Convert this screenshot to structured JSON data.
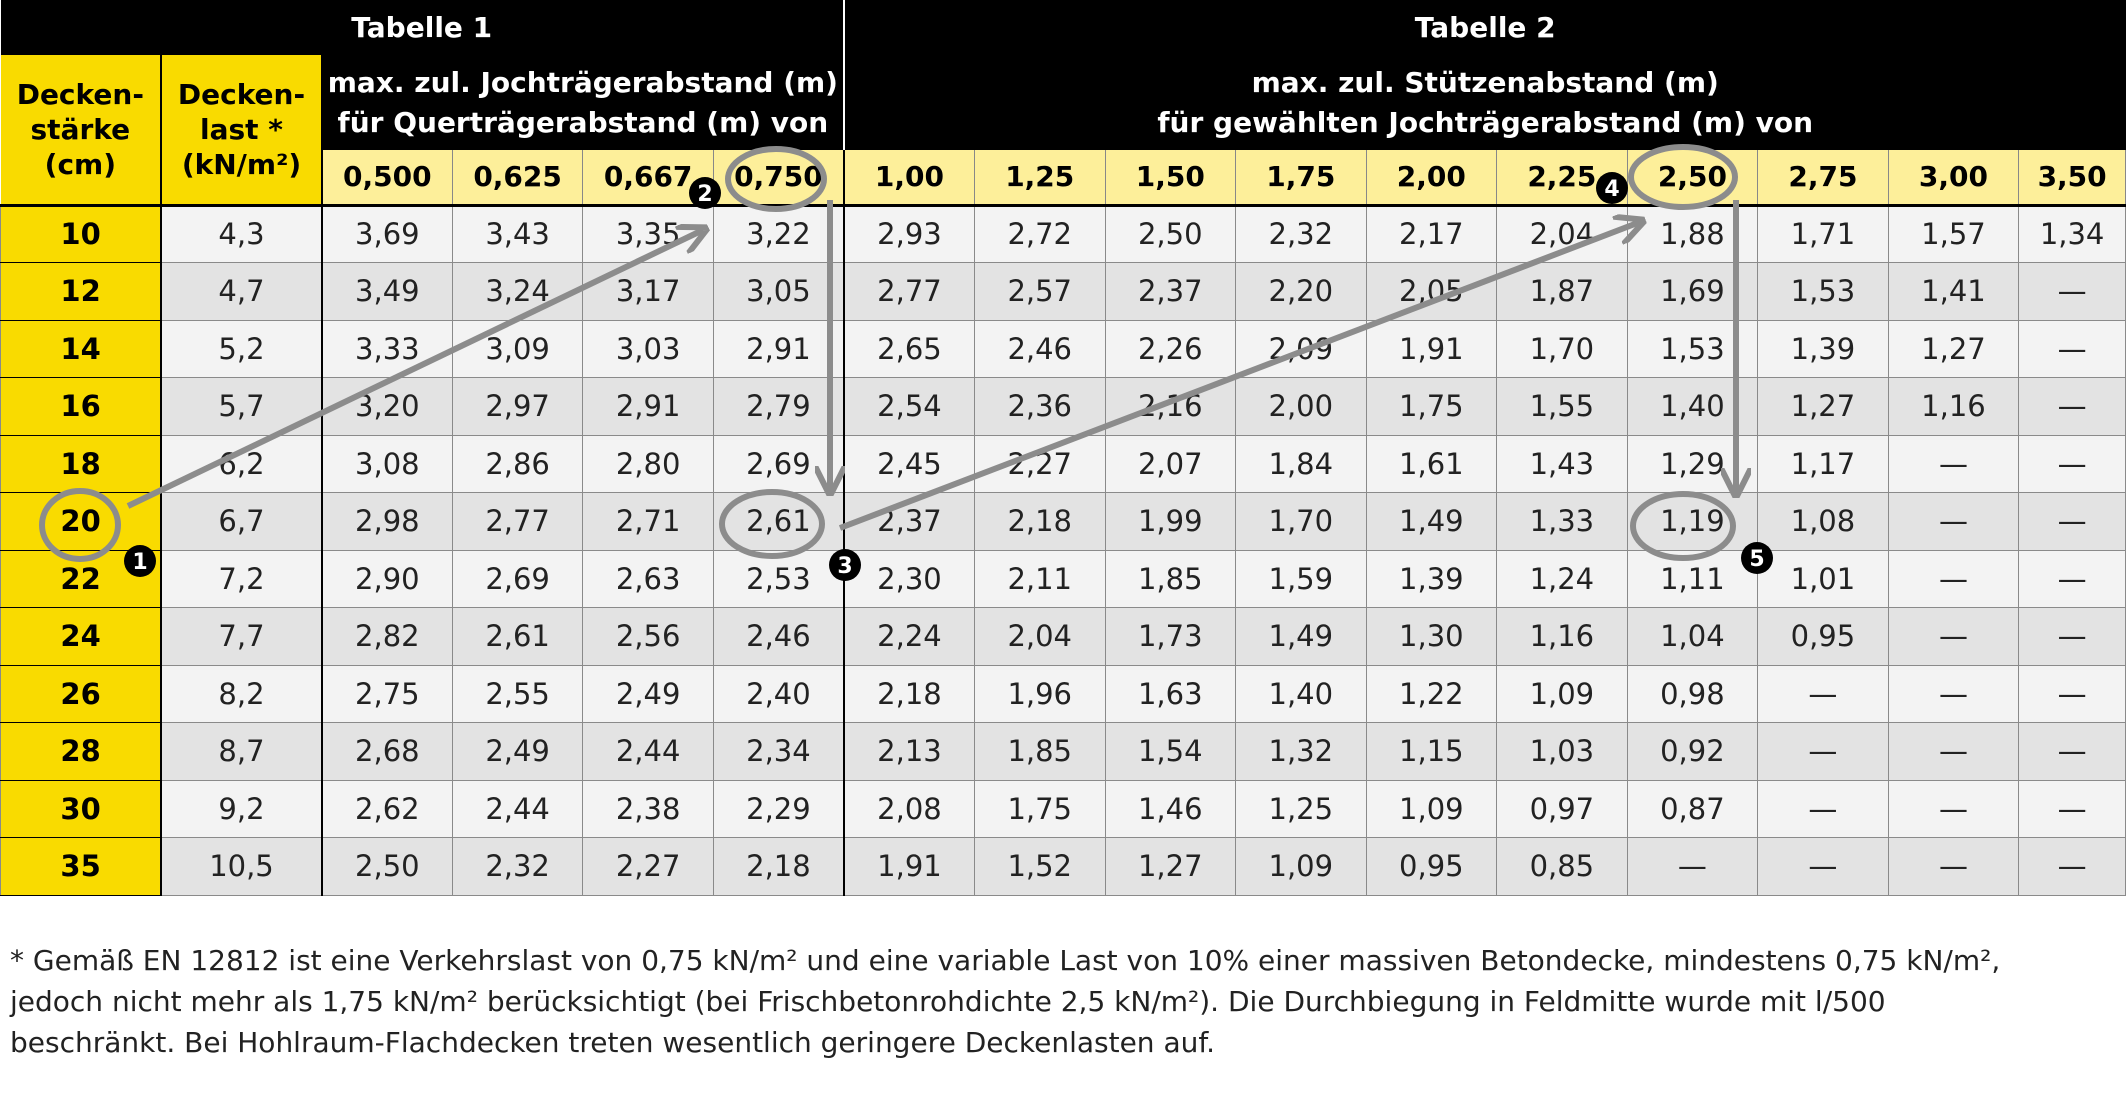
{
  "titles": {
    "table1": "Tabelle 1",
    "table2": "Tabelle 2"
  },
  "headers": {
    "thickness": [
      "Decken-",
      "stärke",
      "(cm)"
    ],
    "load": [
      "Decken-",
      "last *",
      "(kN/m²)"
    ],
    "table1_desc": [
      "max. zul. Jochträgerabstand (m)",
      "für Querträgerabstand (m) von"
    ],
    "table2_desc": [
      "max. zul. Stützenabstand (m)",
      "für gewählten Jochträgerabstand (m) von"
    ]
  },
  "table1_spacings": [
    "0,500",
    "0,625",
    "0,667",
    "0,750"
  ],
  "table2_spacings": [
    "1,00",
    "1,25",
    "1,50",
    "1,75",
    "2,00",
    "2,25",
    "2,50",
    "2,75",
    "3,00",
    "3,50"
  ],
  "rows": [
    {
      "thickness": "10",
      "load": "4,3",
      "t1": [
        "3,69",
        "3,43",
        "3,35",
        "3,22"
      ],
      "t2": [
        "2,93",
        "2,72",
        "2,50",
        "2,32",
        "2,17",
        "2,04",
        "1,88",
        "1,71",
        "1,57",
        "1,34"
      ]
    },
    {
      "thickness": "12",
      "load": "4,7",
      "t1": [
        "3,49",
        "3,24",
        "3,17",
        "3,05"
      ],
      "t2": [
        "2,77",
        "2,57",
        "2,37",
        "2,20",
        "2,05",
        "1,87",
        "1,69",
        "1,53",
        "1,41",
        "—"
      ]
    },
    {
      "thickness": "14",
      "load": "5,2",
      "t1": [
        "3,33",
        "3,09",
        "3,03",
        "2,91"
      ],
      "t2": [
        "2,65",
        "2,46",
        "2,26",
        "2,09",
        "1,91",
        "1,70",
        "1,53",
        "1,39",
        "1,27",
        "—"
      ]
    },
    {
      "thickness": "16",
      "load": "5,7",
      "t1": [
        "3,20",
        "2,97",
        "2,91",
        "2,79"
      ],
      "t2": [
        "2,54",
        "2,36",
        "2,16",
        "2,00",
        "1,75",
        "1,55",
        "1,40",
        "1,27",
        "1,16",
        "—"
      ]
    },
    {
      "thickness": "18",
      "load": "6,2",
      "t1": [
        "3,08",
        "2,86",
        "2,80",
        "2,69"
      ],
      "t2": [
        "2,45",
        "2,27",
        "2,07",
        "1,84",
        "1,61",
        "1,43",
        "1,29",
        "1,17",
        "—",
        "—"
      ]
    },
    {
      "thickness": "20",
      "load": "6,7",
      "t1": [
        "2,98",
        "2,77",
        "2,71",
        "2,61"
      ],
      "t2": [
        "2,37",
        "2,18",
        "1,99",
        "1,70",
        "1,49",
        "1,33",
        "1,19",
        "1,08",
        "—",
        "—"
      ]
    },
    {
      "thickness": "22",
      "load": "7,2",
      "t1": [
        "2,90",
        "2,69",
        "2,63",
        "2,53"
      ],
      "t2": [
        "2,30",
        "2,11",
        "1,85",
        "1,59",
        "1,39",
        "1,24",
        "1,11",
        "1,01",
        "—",
        "—"
      ]
    },
    {
      "thickness": "24",
      "load": "7,7",
      "t1": [
        "2,82",
        "2,61",
        "2,56",
        "2,46"
      ],
      "t2": [
        "2,24",
        "2,04",
        "1,73",
        "1,49",
        "1,30",
        "1,16",
        "1,04",
        "0,95",
        "—",
        "—"
      ]
    },
    {
      "thickness": "26",
      "load": "8,2",
      "t1": [
        "2,75",
        "2,55",
        "2,49",
        "2,40"
      ],
      "t2": [
        "2,18",
        "1,96",
        "1,63",
        "1,40",
        "1,22",
        "1,09",
        "0,98",
        "—",
        "—",
        "—"
      ]
    },
    {
      "thickness": "28",
      "load": "8,7",
      "t1": [
        "2,68",
        "2,49",
        "2,44",
        "2,34"
      ],
      "t2": [
        "2,13",
        "1,85",
        "1,54",
        "1,32",
        "1,15",
        "1,03",
        "0,92",
        "—",
        "—",
        "—"
      ]
    },
    {
      "thickness": "30",
      "load": "9,2",
      "t1": [
        "2,62",
        "2,44",
        "2,38",
        "2,29"
      ],
      "t2": [
        "2,08",
        "1,75",
        "1,46",
        "1,25",
        "1,09",
        "0,97",
        "0,87",
        "—",
        "—",
        "—"
      ]
    },
    {
      "thickness": "35",
      "load": "10,5",
      "t1": [
        "2,50",
        "2,32",
        "2,27",
        "2,18"
      ],
      "t2": [
        "1,91",
        "1,52",
        "1,27",
        "1,09",
        "0,95",
        "0,85",
        "—",
        "—",
        "—",
        "—"
      ]
    }
  ],
  "markers": [
    "1",
    "2",
    "3",
    "4",
    "5"
  ],
  "footnote": [
    "* Gemäß EN 12812 ist eine Verkehrslast von 0,75 kN/m² und eine variable Last von 10% einer massiven Betondecke, mindestens 0,75 kN/m²,",
    "jedoch nicht mehr als 1,75 kN/m² berücksichtigt (bei Frischbetonrohdichte 2,5 kN/m²). Die Durchbiegung in Feldmitte wurde mit l/500",
    "beschränkt. Bei Hohlraum-Flachdecken treten wesentlich geringere Deckenlasten auf."
  ],
  "colors": {
    "yellow": "#f9db00",
    "light_yellow": "#fdef9a",
    "black": "#000000",
    "annotation_gray": "#8c8c8c"
  }
}
